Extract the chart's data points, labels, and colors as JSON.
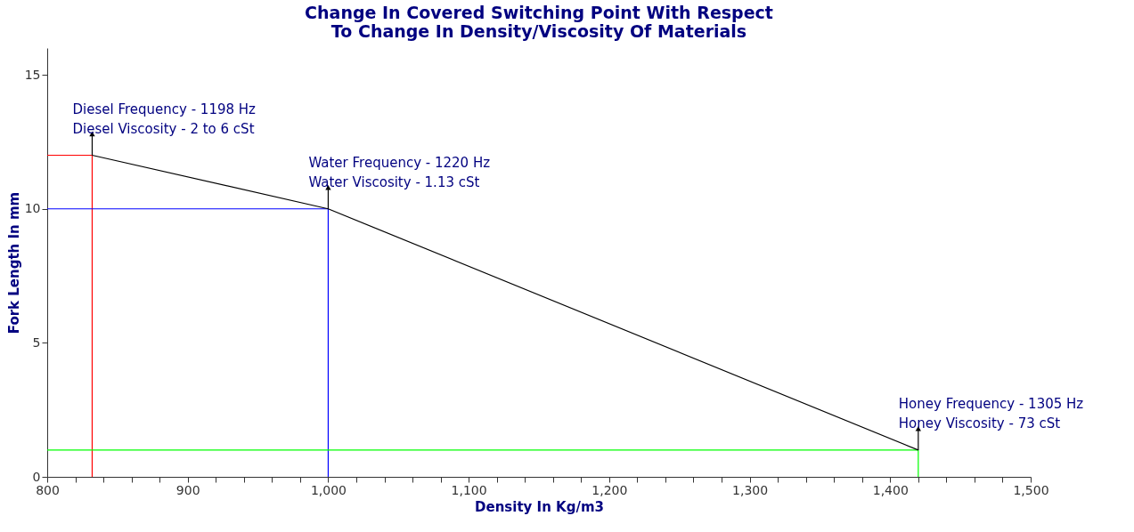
{
  "chart_data": {
    "type": "line",
    "title": "Change In Covered Switching Point With Respect\nTo Change In Density/Viscosity Of Materials",
    "xlabel": "Density In Kg/m3",
    "ylabel": "Fork Length In mm",
    "series": [
      {
        "color": "#ff0000",
        "x": [
          800,
          832,
          832
        ],
        "values": [
          12,
          12,
          0
        ]
      },
      {
        "color": "#0000ff",
        "x": [
          800,
          1000,
          1000
        ],
        "values": [
          10,
          10,
          0
        ]
      },
      {
        "color": "#00ff00",
        "x": [
          800,
          1420,
          1420
        ],
        "values": [
          1,
          1,
          0
        ]
      },
      {
        "color": "#000000",
        "x": [
          832,
          1000,
          1420
        ],
        "values": [
          12,
          10,
          1
        ]
      }
    ],
    "annotations": [
      {
        "text": "Diesel Frequency - 1198 Hz\nDiesel Viscosity - 2 to 6 cSt",
        "x": 832,
        "y": 12
      },
      {
        "text": "Water Frequency - 1220 Hz\nWater Viscosity - 1.13 cSt",
        "x": 1000,
        "y": 10
      },
      {
        "text": "Honey Frequency - 1305 Hz\nHoney Viscosity - 73 cSt",
        "x": 1420,
        "y": 1
      }
    ],
    "xlim": [
      800,
      1500
    ],
    "ylim": [
      0,
      16
    ],
    "xticks": [
      800,
      {
        "value": 820,
        "label": null
      },
      {
        "value": 840,
        "label": null
      },
      {
        "value": 860,
        "label": null
      },
      {
        "value": 880,
        "label": null
      },
      900,
      {
        "value": 920,
        "label": null
      },
      {
        "value": 940,
        "label": null
      },
      {
        "value": 960,
        "label": null
      },
      {
        "value": 980,
        "label": null
      },
      {
        "value": 1000,
        "label": "1,000"
      },
      {
        "value": 1020,
        "label": null
      },
      {
        "value": 1040,
        "label": null
      },
      {
        "value": 1060,
        "label": null
      },
      {
        "value": 1080,
        "label": null
      },
      {
        "value": 1100,
        "label": "1,100"
      },
      {
        "value": 1120,
        "label": null
      },
      {
        "value": 1140,
        "label": null
      },
      {
        "value": 1160,
        "label": null
      },
      {
        "value": 1180,
        "label": null
      },
      {
        "value": 1200,
        "label": "1,200"
      },
      {
        "value": 1220,
        "label": null
      },
      {
        "value": 1240,
        "label": null
      },
      {
        "value": 1260,
        "label": null
      },
      {
        "value": 1280,
        "label": null
      },
      {
        "value": 1300,
        "label": "1,300"
      },
      {
        "value": 1320,
        "label": null
      },
      {
        "value": 1340,
        "label": null
      },
      {
        "value": 1360,
        "label": null
      },
      {
        "value": 1380,
        "label": null
      },
      {
        "value": 1400,
        "label": "1,400"
      },
      {
        "value": 1420,
        "label": null
      },
      {
        "value": 1440,
        "label": null
      },
      {
        "value": 1460,
        "label": null
      },
      {
        "value": 1480,
        "label": null
      },
      {
        "value": 1500,
        "label": "1,500"
      }
    ],
    "yticks": [
      0,
      5,
      10,
      15
    ],
    "grid": false,
    "marker": "none",
    "line_style": "solid"
  }
}
